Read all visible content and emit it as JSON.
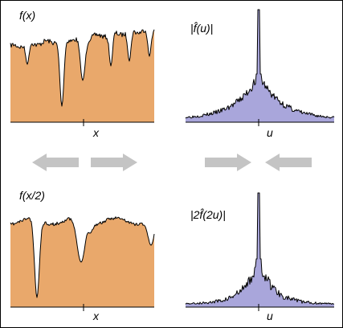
{
  "panels": {
    "top_left": {
      "title": "f(x)",
      "axis_label": "x"
    },
    "top_right": {
      "title": "|f̂(u)|",
      "axis_label": "u"
    },
    "bottom_left": {
      "title": "f(x/2)",
      "axis_label": "x"
    },
    "bottom_right": {
      "title": "|2f̂(2u)|",
      "axis_label": "u"
    }
  },
  "arrows": {
    "left_pair": [
      "left",
      "right"
    ],
    "right_pair": [
      "right",
      "left"
    ]
  },
  "colors": {
    "signal_fill": "#e9a86b",
    "spectrum_fill": "#a9a6db",
    "arrow_fill": "#c4c4c4",
    "border": "#000000"
  }
}
